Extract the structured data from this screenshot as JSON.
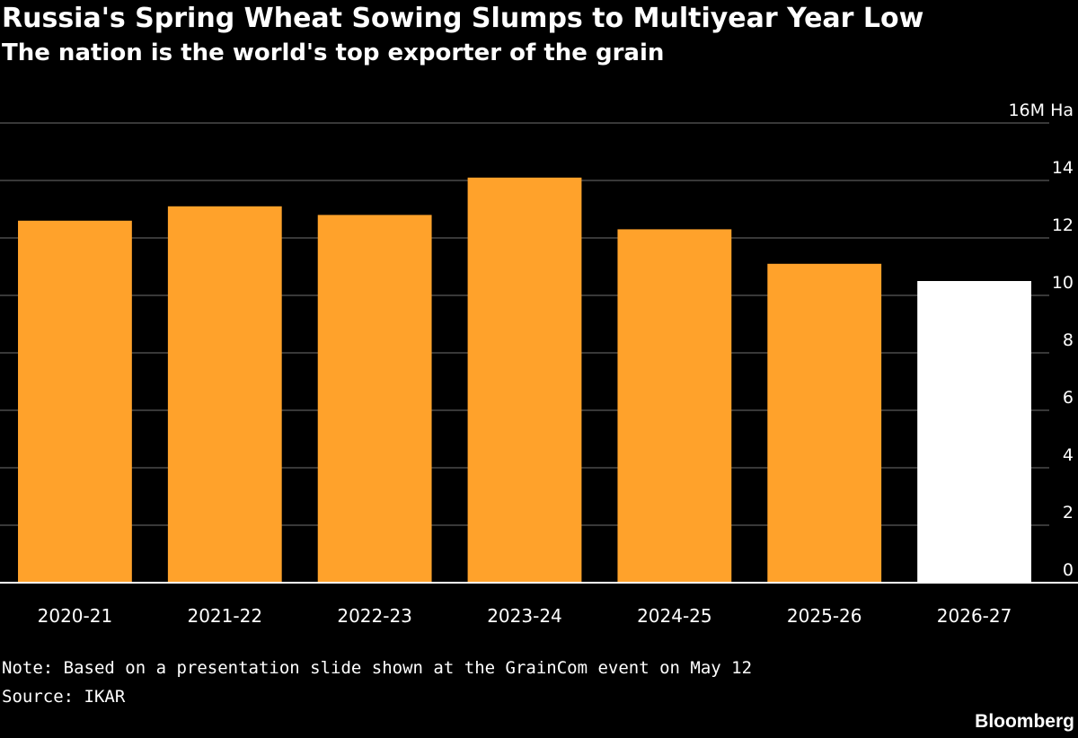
{
  "chart_data": {
    "type": "bar",
    "title": "Russia's Spring Wheat Sowing Slumps to Multiyear Year Low",
    "subtitle": "The nation is the world's top exporter of the grain",
    "categories": [
      "2020-21",
      "2021-22",
      "2022-23",
      "2023-24",
      "2024-25",
      "2025-26",
      "2026-27"
    ],
    "values": [
      12.6,
      13.1,
      12.8,
      14.1,
      12.3,
      11.1,
      10.5
    ],
    "highlight_index": 6,
    "ylim": [
      0,
      16
    ],
    "yticks": [
      0,
      2,
      4,
      6,
      8,
      10,
      12,
      14,
      16
    ],
    "ytick_labels": [
      "0",
      "2",
      "4",
      "6",
      "8",
      "10",
      "12",
      "14",
      "16M Ha"
    ],
    "yaxis_side": "right",
    "grid": true,
    "colors": {
      "bar": "#ffa22b",
      "highlight": "#ffffff",
      "grid": "#595959",
      "baseline": "#ffffff",
      "background": "#000000"
    }
  },
  "footer": {
    "note": "Note: Based on a presentation slide shown at the GrainCom event on May 12",
    "source": "Source: IKAR",
    "brand": "Bloomberg"
  }
}
